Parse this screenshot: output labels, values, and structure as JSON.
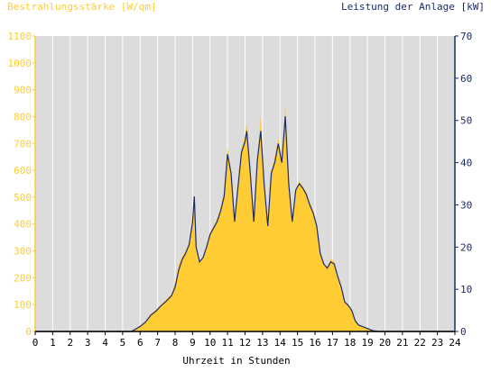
{
  "colors": {
    "irradiance": "#ffcc33",
    "power": "#1c2a6e",
    "plot_bg": "#dcdcdc",
    "grid": "#ffffff",
    "left_axis_text": "#ffcc33",
    "right_axis_text": "#1c2a6e",
    "bottom_text": "#000000"
  },
  "chart_data": {
    "type": "area",
    "title_left": "Bestrahlungsstärke [W/qm]",
    "title_right": "Leistung der Anlage [kW]",
    "xlabel": "Uhrzeit in Stunden",
    "xlim": [
      0,
      24
    ],
    "ylim_left": [
      0,
      1100
    ],
    "ylim_right": [
      0,
      70
    ],
    "x_ticks": [
      "0",
      "1",
      "2",
      "3",
      "4",
      "5",
      "6",
      "7",
      "8",
      "9",
      "10",
      "11",
      "12",
      "13",
      "14",
      "15",
      "16",
      "17",
      "18",
      "19",
      "20",
      "21",
      "22",
      "23",
      "24"
    ],
    "y_ticks_left": [
      "0",
      "100",
      "200",
      "300",
      "400",
      "500",
      "600",
      "700",
      "800",
      "900",
      "1000",
      "1100"
    ],
    "y_ticks_right": [
      "0",
      "10",
      "20",
      "30",
      "40",
      "50",
      "60",
      "70"
    ],
    "grid": "vertical",
    "series": [
      {
        "name": "Bestrahlungsstärke",
        "axis": "left",
        "style": "area",
        "x": [
          0,
          5.5,
          6.0,
          6.3,
          6.6,
          6.9,
          7.2,
          7.5,
          7.8,
          8.0,
          8.2,
          8.4,
          8.6,
          8.8,
          9.0,
          9.1,
          9.2,
          9.4,
          9.6,
          9.8,
          10.0,
          10.2,
          10.4,
          10.6,
          10.8,
          11.0,
          11.2,
          11.4,
          11.6,
          11.8,
          12.0,
          12.1,
          12.3,
          12.5,
          12.7,
          12.9,
          13.1,
          13.3,
          13.5,
          13.7,
          13.9,
          14.1,
          14.3,
          14.5,
          14.7,
          14.9,
          15.1,
          15.3,
          15.5,
          15.7,
          15.9,
          16.1,
          16.3,
          16.5,
          16.7,
          16.9,
          17.1,
          17.3,
          17.5,
          17.7,
          17.9,
          18.1,
          18.3,
          18.5,
          18.7,
          19.0,
          19.3,
          19.6,
          19.8,
          20.0,
          24
        ],
        "values": [
          0,
          0,
          20,
          35,
          65,
          80,
          100,
          120,
          140,
          180,
          250,
          280,
          300,
          330,
          420,
          470,
          310,
          260,
          280,
          320,
          370,
          390,
          420,
          460,
          520,
          680,
          600,
          420,
          550,
          680,
          730,
          780,
          600,
          420,
          640,
          800,
          550,
          400,
          600,
          650,
          720,
          640,
          840,
          560,
          420,
          530,
          560,
          540,
          520,
          480,
          450,
          400,
          300,
          250,
          240,
          270,
          260,
          210,
          170,
          110,
          100,
          80,
          40,
          25,
          20,
          12,
          5,
          0,
          0,
          0,
          0
        ]
      },
      {
        "name": "Leistung der Anlage",
        "axis": "right",
        "style": "line",
        "x": [
          0,
          5.5,
          6.0,
          6.3,
          6.6,
          6.9,
          7.2,
          7.5,
          7.8,
          8.0,
          8.2,
          8.4,
          8.6,
          8.8,
          9.0,
          9.1,
          9.2,
          9.4,
          9.6,
          9.8,
          10.0,
          10.2,
          10.4,
          10.6,
          10.8,
          11.0,
          11.2,
          11.4,
          11.6,
          11.8,
          12.0,
          12.1,
          12.3,
          12.5,
          12.7,
          12.9,
          13.1,
          13.3,
          13.5,
          13.7,
          13.9,
          14.1,
          14.3,
          14.5,
          14.7,
          14.9,
          15.1,
          15.3,
          15.5,
          15.7,
          15.9,
          16.1,
          16.3,
          16.5,
          16.7,
          16.9,
          17.1,
          17.3,
          17.5,
          17.7,
          17.9,
          18.1,
          18.3,
          18.5,
          18.7,
          19.0,
          19.3,
          19.6,
          19.8,
          20.0,
          24
        ],
        "values": [
          0,
          0,
          1.2,
          2.2,
          3.8,
          4.8,
          6.1,
          7.2,
          8.5,
          10.5,
          14.5,
          17.0,
          18.5,
          20.5,
          26.0,
          32.0,
          20.0,
          16.5,
          17.5,
          20.0,
          23.0,
          24.5,
          26.0,
          28.5,
          32.0,
          42.0,
          37.5,
          26.0,
          34.5,
          42.5,
          45.0,
          47.5,
          37.5,
          26.0,
          40.5,
          47.5,
          34.5,
          25.0,
          37.5,
          40.0,
          44.5,
          40.0,
          51.0,
          35.0,
          26.0,
          33.5,
          35.0,
          34.0,
          32.5,
          30.0,
          28.0,
          25.0,
          18.5,
          16.0,
          15.0,
          16.5,
          16.0,
          13.0,
          10.5,
          7.0,
          6.2,
          5.0,
          2.5,
          1.5,
          1.2,
          0.7,
          0.2,
          0,
          0,
          0,
          0
        ]
      }
    ]
  }
}
